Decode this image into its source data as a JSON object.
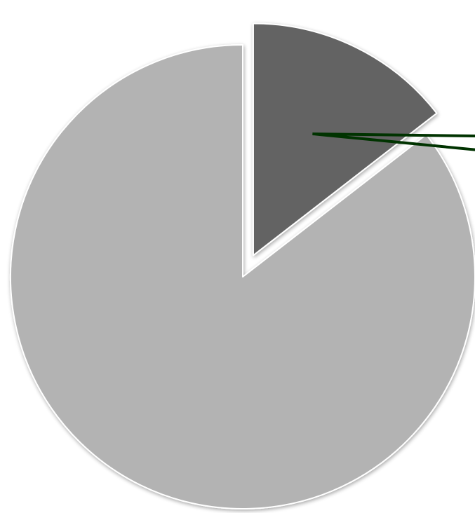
{
  "chart_data": {
    "type": "pie",
    "title": "",
    "start_angle_deg": 0,
    "direction": "clockwise",
    "slices": [
      {
        "label": "",
        "value": 14.5,
        "color": "#636363",
        "exploded": true
      },
      {
        "label": "",
        "value": 85.5,
        "color": "#b3b3b3",
        "exploded": false
      }
    ],
    "callout_color": "#003300",
    "legend": "none",
    "data_labels_visible": false
  }
}
